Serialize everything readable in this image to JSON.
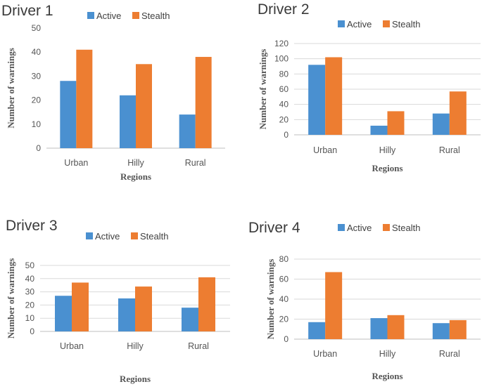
{
  "colors": {
    "active": "#4a90d0",
    "stealth": "#ed7d31",
    "grid": "#d9d9d9",
    "axis": "#bfbfbf"
  },
  "chart_data": [
    {
      "type": "bar",
      "title": "Driver 1",
      "categories": [
        "Urban",
        "Hilly",
        "Rural"
      ],
      "series": [
        {
          "name": "Active",
          "values": [
            28,
            22,
            14
          ]
        },
        {
          "name": "Stealth",
          "values": [
            41,
            35,
            38
          ]
        }
      ],
      "xlabel": "Regions",
      "ylabel": "Number of warnings",
      "ylim": [
        0,
        50
      ],
      "yticks": [
        0,
        10,
        20,
        30,
        40,
        50
      ],
      "grid": false,
      "legend": "top"
    },
    {
      "type": "bar",
      "title": "Driver 2",
      "categories": [
        "Urban",
        "Hilly",
        "Rural"
      ],
      "series": [
        {
          "name": "Active",
          "values": [
            92,
            12,
            28
          ]
        },
        {
          "name": "Stealth",
          "values": [
            102,
            31,
            57
          ]
        }
      ],
      "xlabel": "Regions",
      "ylabel": "Number of warnings",
      "ylim": [
        0,
        120
      ],
      "yticks": [
        0,
        20,
        40,
        60,
        80,
        100,
        120
      ],
      "grid": true,
      "legend": "top"
    },
    {
      "type": "bar",
      "title": "Driver 3",
      "categories": [
        "Urban",
        "Hilly",
        "Rural"
      ],
      "series": [
        {
          "name": "Active",
          "values": [
            27,
            25,
            18
          ]
        },
        {
          "name": "Stealth",
          "values": [
            37,
            34,
            41
          ]
        }
      ],
      "xlabel": "Regions",
      "ylabel": "Number of warnings",
      "ylim": [
        0,
        50
      ],
      "yticks": [
        0,
        10,
        20,
        30,
        40,
        50
      ],
      "grid": true,
      "legend": "top"
    },
    {
      "type": "bar",
      "title": "Driver 4",
      "categories": [
        "Urban",
        "Hilly",
        "Rural"
      ],
      "series": [
        {
          "name": "Active",
          "values": [
            17,
            21,
            16
          ]
        },
        {
          "name": "Stealth",
          "values": [
            67,
            24,
            19
          ]
        }
      ],
      "xlabel": "Regions",
      "ylabel": "Number of warnings",
      "ylim": [
        0,
        80
      ],
      "yticks": [
        0,
        20,
        40,
        60,
        80
      ],
      "grid": true,
      "legend": "top"
    }
  ]
}
